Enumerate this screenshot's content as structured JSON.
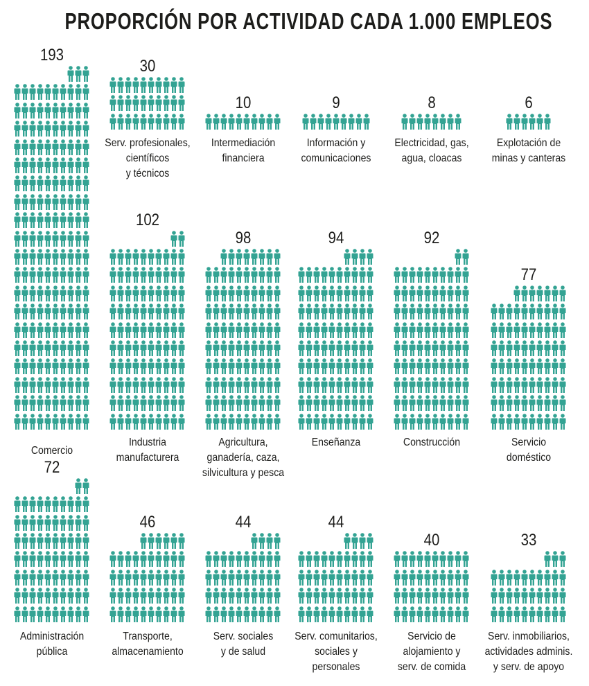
{
  "title": "PROPORCIÓN POR ACTIVIDAD CADA 1.000 EMPLEOS",
  "chart_data": {
    "type": "pictogram",
    "title": "PROPORCIÓN POR ACTIVIDAD CADA 1.000 EMPLEOS",
    "unit": "empleos cada 1.000",
    "icons_per_row": 10,
    "color": "#33a393",
    "categories": [
      {
        "label": "Comercio",
        "value": 193
      },
      {
        "label": "Serv. profesionales,\ncientíficos\ny técnicos",
        "value": 30
      },
      {
        "label": "Intermediación\nfinanciera",
        "value": 10
      },
      {
        "label": "Información y\ncomunicaciones",
        "value": 9
      },
      {
        "label": "Electricidad, gas,\nagua, cloacas",
        "value": 8
      },
      {
        "label": "Explotación de\nminas y canteras",
        "value": 6
      },
      {
        "label": "Industria\nmanufacturera",
        "value": 102
      },
      {
        "label": "Agricultura,\nganadería, caza,\nsilvicultura y pesca",
        "value": 98
      },
      {
        "label": "Enseñanza",
        "value": 94
      },
      {
        "label": "Construcción",
        "value": 92
      },
      {
        "label": "Servicio\ndoméstico",
        "value": 77
      },
      {
        "label": "Administración\npública",
        "value": 72
      },
      {
        "label": "Transporte,\nalmacenamiento",
        "value": 46
      },
      {
        "label": "Serv. sociales\ny de salud",
        "value": 44
      },
      {
        "label": "Serv. comunitarios,\nsociales y personales",
        "value": 44
      },
      {
        "label": "Servicio de\nalojamiento y\nserv. de comida",
        "value": 40
      },
      {
        "label": "Serv. inmobiliarios,\nactividades adminis.\ny serv. de apoyo",
        "value": 33
      }
    ]
  }
}
